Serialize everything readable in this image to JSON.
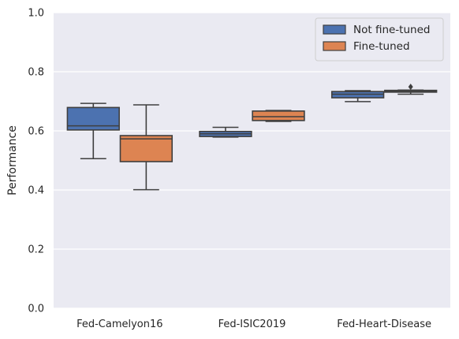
{
  "chart_data": {
    "type": "box",
    "ylabel": "Performance",
    "xlabel": "",
    "ylim": [
      0.0,
      1.0
    ],
    "yticks": [
      "0.0",
      "0.2",
      "0.4",
      "0.6",
      "0.8",
      "1.0"
    ],
    "grid": true,
    "legend_position": "top-right",
    "categories": [
      "Fed-Camelyon16",
      "Fed-ISIC2019",
      "Fed-Heart-Disease"
    ],
    "series": [
      {
        "name": "Not fine-tuned",
        "color": "#4c72b0",
        "boxes": [
          {
            "whisker_low": 0.506,
            "q1": 0.603,
            "median": 0.617,
            "q3": 0.679,
            "whisker_high": 0.693,
            "outliers": []
          },
          {
            "whisker_low": 0.579,
            "q1": 0.581,
            "median": 0.59,
            "q3": 0.598,
            "whisker_high": 0.612,
            "outliers": []
          },
          {
            "whisker_low": 0.699,
            "q1": 0.712,
            "median": 0.724,
            "q3": 0.733,
            "whisker_high": 0.736,
            "outliers": []
          }
        ]
      },
      {
        "name": "Fine-tuned",
        "color": "#dd8452",
        "boxes": [
          {
            "whisker_low": 0.401,
            "q1": 0.496,
            "median": 0.573,
            "q3": 0.584,
            "whisker_high": 0.688,
            "outliers": []
          },
          {
            "whisker_low": 0.632,
            "q1": 0.635,
            "median": 0.648,
            "q3": 0.667,
            "whisker_high": 0.669,
            "outliers": []
          },
          {
            "whisker_low": 0.724,
            "q1": 0.731,
            "median": 0.734,
            "q3": 0.737,
            "whisker_high": 0.738,
            "outliers": [
              0.749
            ]
          }
        ]
      }
    ]
  }
}
